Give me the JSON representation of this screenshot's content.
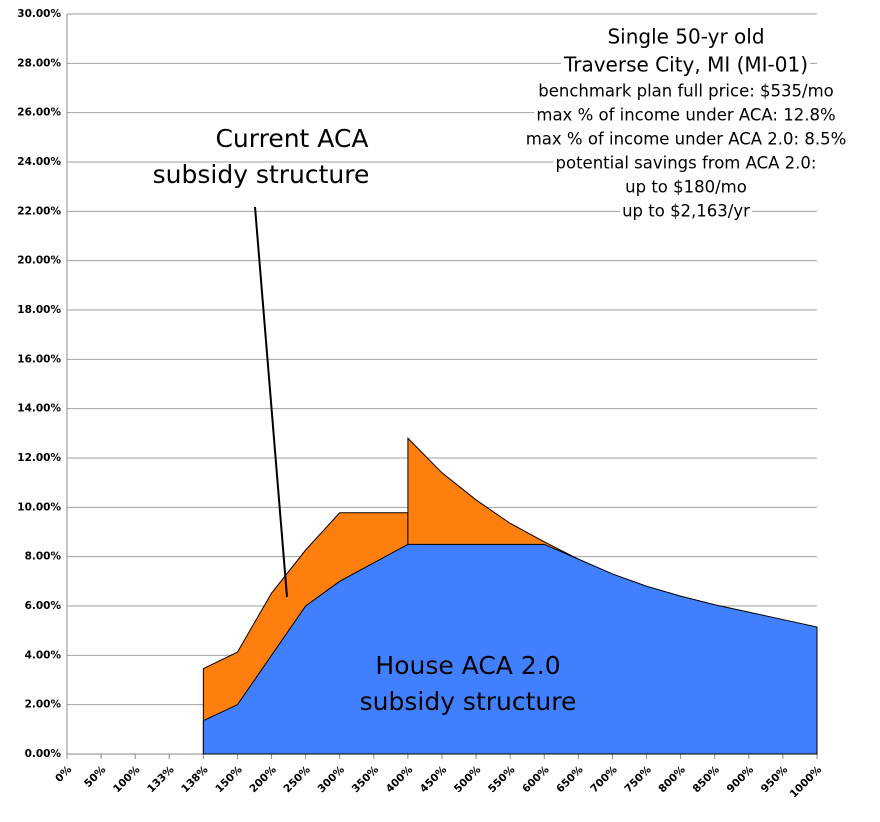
{
  "chart_data": {
    "type": "area",
    "categories": [
      "0%",
      "50%",
      "100%",
      "133%",
      "138%",
      "150%",
      "200%",
      "250%",
      "300%",
      "350%",
      "400%",
      "450%",
      "500%",
      "550%",
      "600%",
      "650%",
      "700%",
      "750%",
      "800%",
      "850%",
      "900%",
      "950%",
      "1000%"
    ],
    "series": [
      {
        "color": "#ff7f0e",
        "values": [
          null,
          null,
          null,
          null,
          3.46,
          4.13,
          6.52,
          8.27,
          9.78,
          9.78,
          9.78,
          null,
          null,
          null,
          null,
          null,
          null,
          null,
          null,
          null,
          null,
          null,
          null
        ]
      },
      {
        "color": "#ff7f0e",
        "values": [
          null,
          null,
          null,
          null,
          null,
          null,
          null,
          null,
          null,
          null,
          12.8,
          11.4,
          10.3,
          9.35,
          8.6,
          7.9,
          null,
          null,
          null,
          null,
          null,
          null,
          null
        ]
      },
      {
        "color": "#4080ff",
        "values": [
          null,
          null,
          null,
          null,
          1.35,
          2.0,
          4.0,
          6.0,
          7.0,
          7.75,
          8.5,
          8.5,
          8.5,
          8.5,
          8.5,
          7.9,
          7.3,
          6.8,
          6.4,
          6.05,
          5.75,
          5.45,
          5.15
        ]
      }
    ],
    "ylim": [
      0,
      30
    ],
    "yticks": [
      {
        "value": 0,
        "label": "0.00%"
      },
      {
        "value": 2,
        "label": "2.00%"
      },
      {
        "value": 4,
        "label": "4.00%"
      },
      {
        "value": 6,
        "label": "6.00%"
      },
      {
        "value": 8,
        "label": "8.00%"
      },
      {
        "value": 10,
        "label": "10.00%"
      },
      {
        "value": 12,
        "label": "12.00%"
      },
      {
        "value": 14,
        "label": "14.00%"
      },
      {
        "value": 16,
        "label": "16.00%"
      },
      {
        "value": 18,
        "label": "18.00%"
      },
      {
        "value": 20,
        "label": "20.00%"
      },
      {
        "value": 22,
        "label": "22.00%"
      },
      {
        "value": 24,
        "label": "24.00%"
      },
      {
        "value": 26,
        "label": "26.00%"
      },
      {
        "value": 28,
        "label": "28.00%"
      },
      {
        "value": 30,
        "label": "30.00%"
      }
    ],
    "grid": true,
    "annotations": {
      "current": [
        "Current ACA",
        "subsidy structure"
      ],
      "house": [
        "House ACA 2.0",
        "subsidy structure"
      ],
      "info": [
        "Single 50-yr old",
        "Traverse City, MI (MI-01)",
        "benchmark plan full price: $535/mo",
        "max % of income under ACA: 12.8%",
        "max % of income under ACA 2.0: 8.5%",
        "potential savings from ACA 2.0:",
        "up to $180/mo",
        "up to $2,163/yr"
      ]
    }
  }
}
